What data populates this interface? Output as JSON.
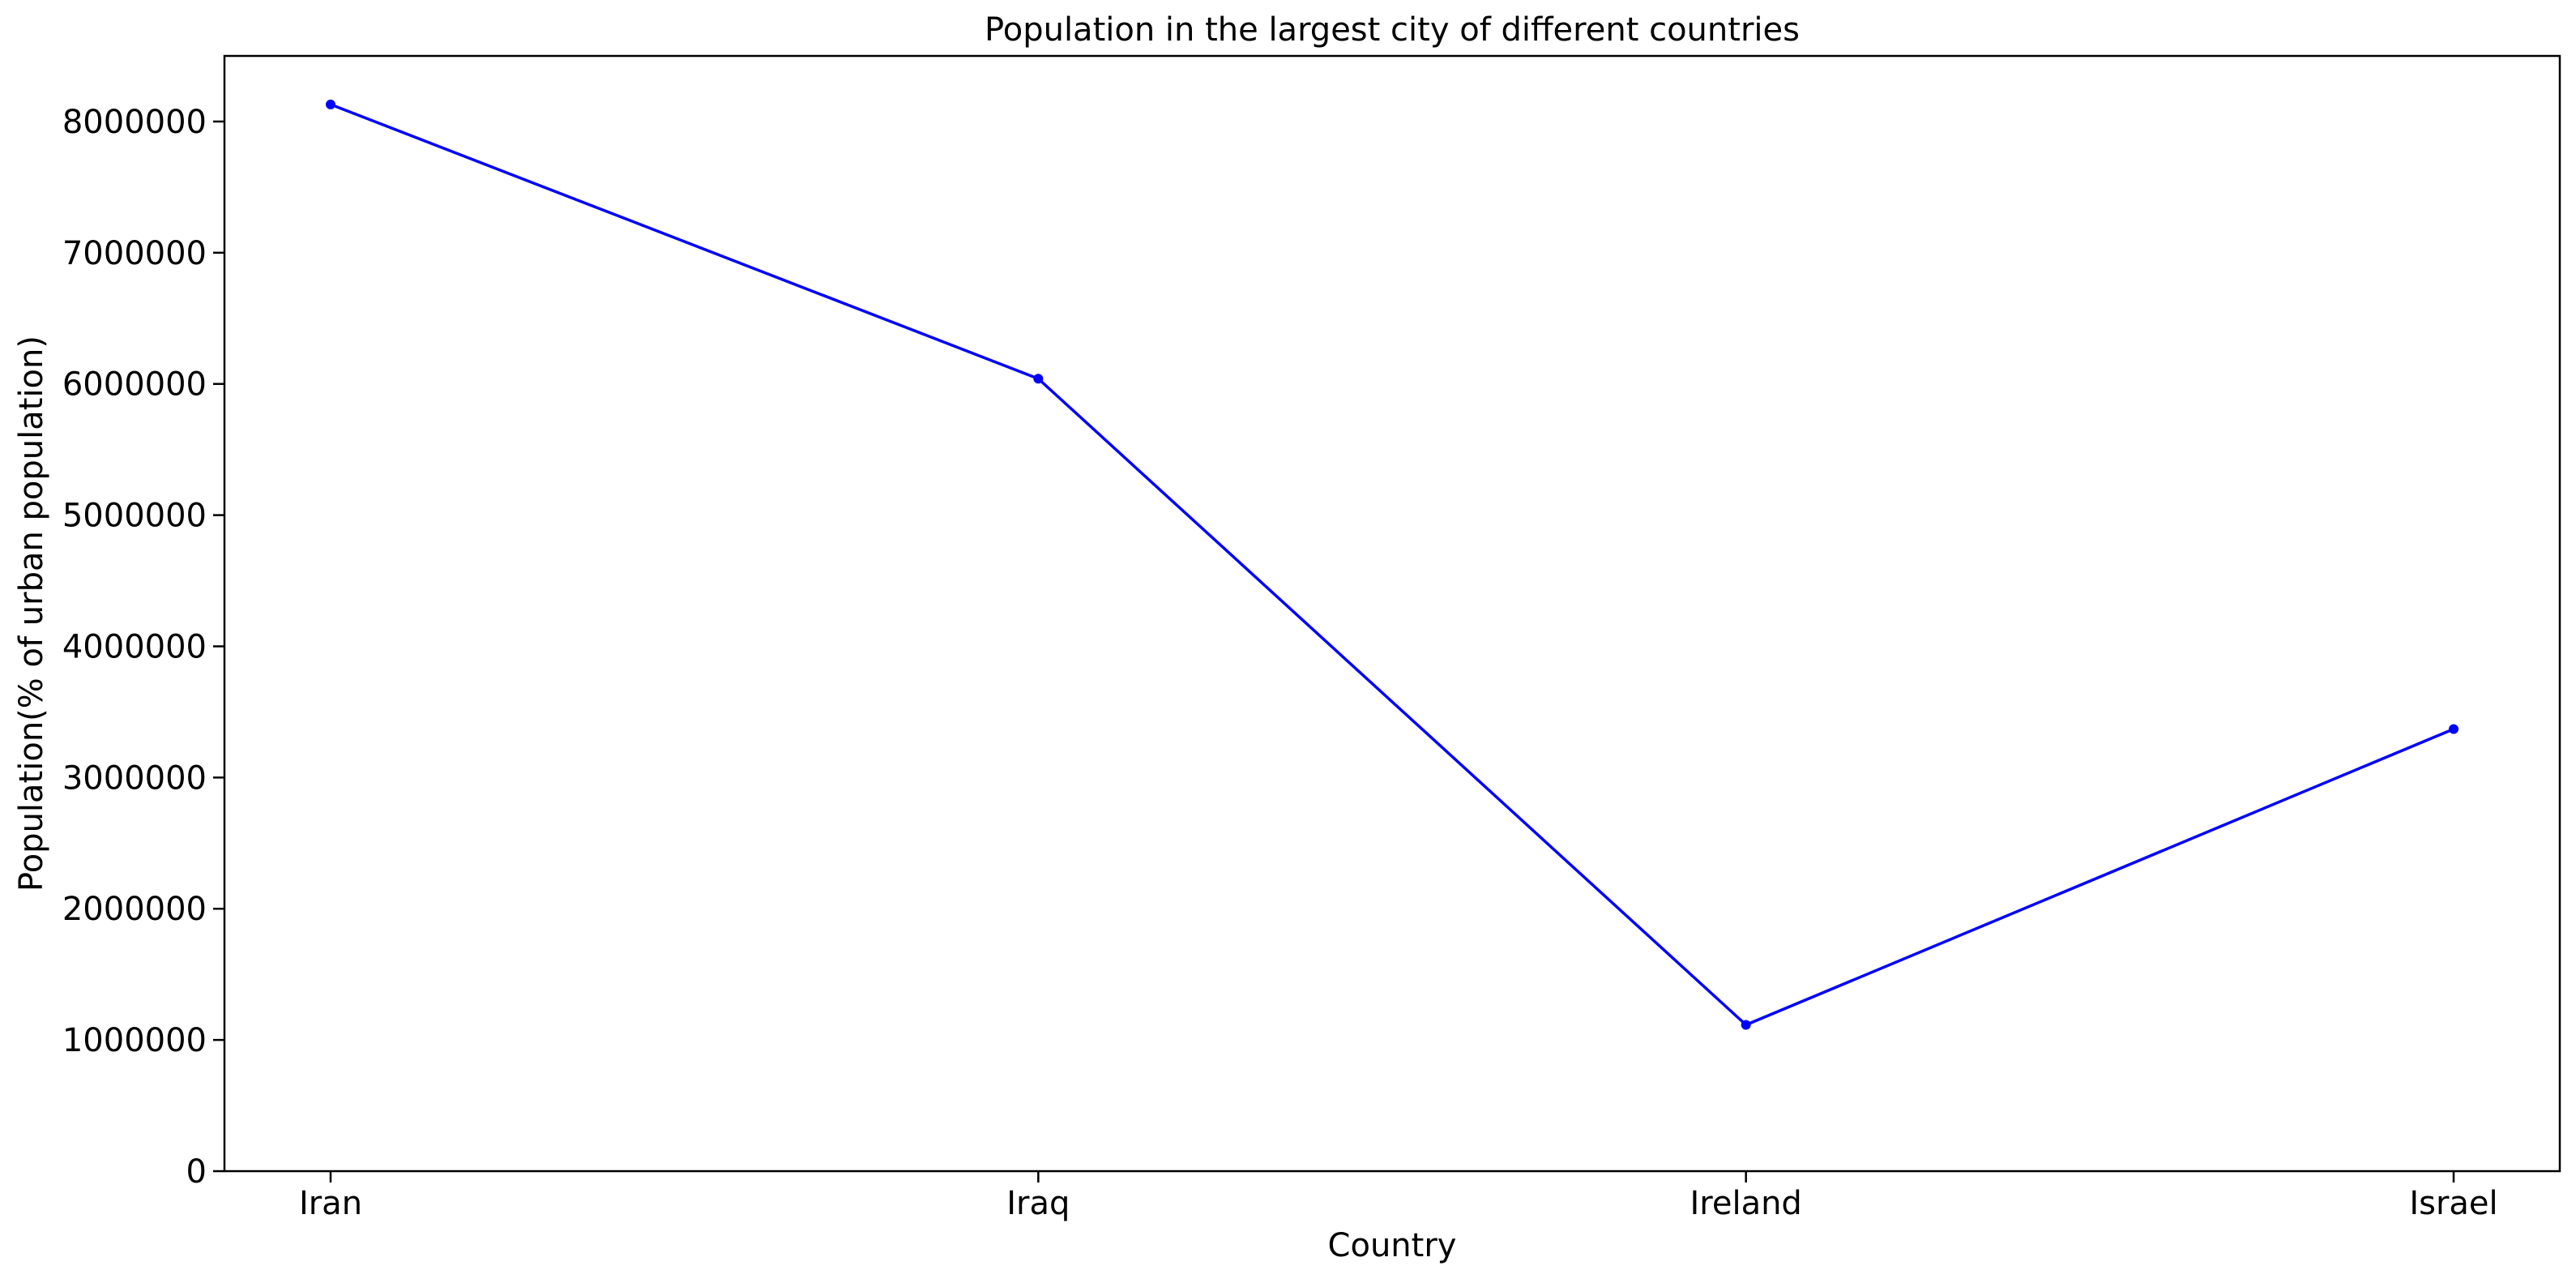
{
  "chart_data": {
    "type": "line",
    "title": "Population in the largest city of different countries",
    "xlabel": "Country",
    "ylabel": "Population(% of urban population)",
    "categories": [
      "Iran",
      "Iraq",
      "Ireland",
      "Israel"
    ],
    "series": [
      {
        "values": [
          8130000,
          6040000,
          1115000,
          3370000
        ],
        "color": "#0000ff",
        "marker": "circle"
      }
    ],
    "ylim": [
      0,
      8500000
    ],
    "yticks": [
      0,
      1000000,
      2000000,
      3000000,
      4000000,
      5000000,
      6000000,
      7000000,
      8000000
    ],
    "ytick_labels": [
      "0",
      "1000000",
      "2000000",
      "3000000",
      "4000000",
      "5000000",
      "6000000",
      "7000000",
      "8000000"
    ],
    "grid": false,
    "legend": "none"
  }
}
